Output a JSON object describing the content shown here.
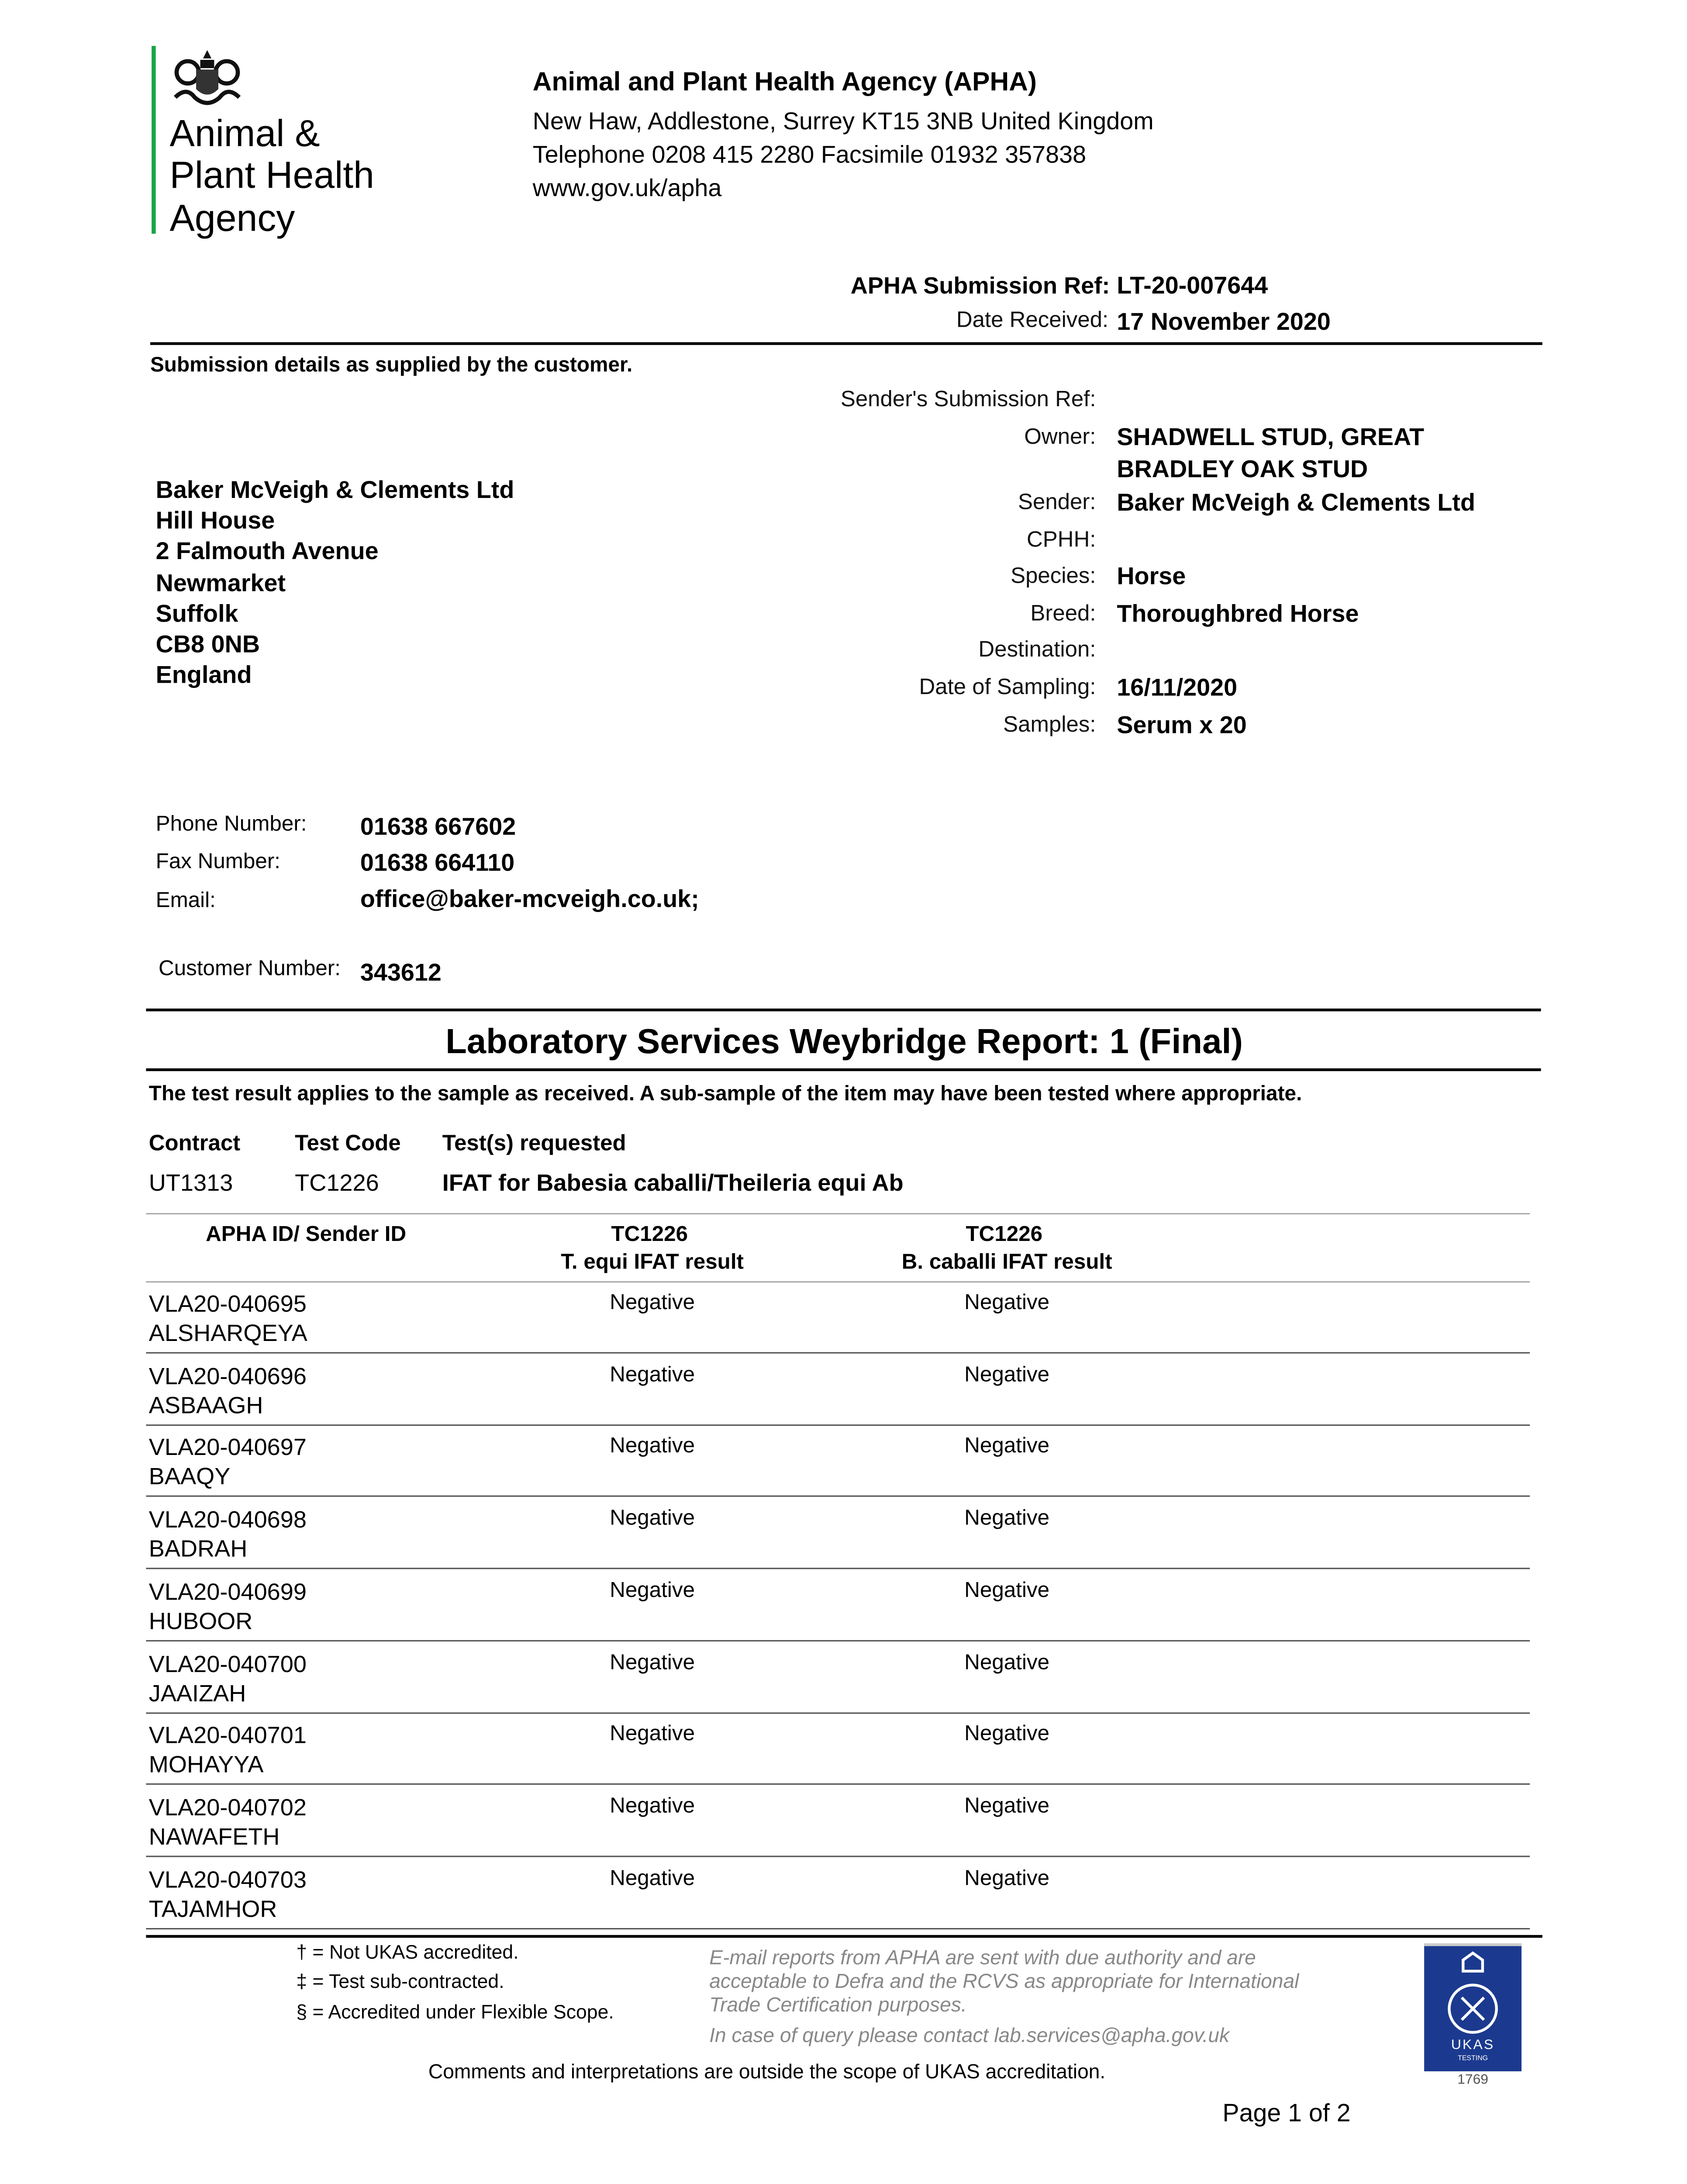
{
  "logo": {
    "lines": [
      "Animal &",
      "Plant Health",
      "Agency"
    ],
    "accent": "#1aa548"
  },
  "header": {
    "title": "Animal and Plant Health Agency (APHA)",
    "address": "New Haw, Addlestone, Surrey KT15 3NB United Kingdom",
    "phone": "Telephone 0208 415 2280 Facsimile 01932 357838",
    "web": "www.gov.uk/apha"
  },
  "submission": {
    "ref_label": "APHA Submission Ref:",
    "ref": "LT-20-007644",
    "date_label": "Date Received:",
    "date": "17 November 2020"
  },
  "details_heading": "Submission details as supplied by the customer.",
  "details": [
    {
      "label": "Sender's Submission Ref:",
      "value": ""
    },
    {
      "label": "Owner:",
      "value": "SHADWELL STUD, GREAT",
      "value2": "BRADLEY OAK STUD"
    },
    {
      "label": "Sender:",
      "value": "Baker McVeigh & Clements Ltd"
    },
    {
      "label": "CPHH:",
      "value": ""
    },
    {
      "label": "Species:",
      "value": "Horse"
    },
    {
      "label": "Breed:",
      "value": "Thoroughbred Horse"
    },
    {
      "label": "Destination:",
      "value": ""
    },
    {
      "label": "Date of Sampling:",
      "value": "16/11/2020"
    },
    {
      "label": "Samples:",
      "value": "Serum x 20"
    }
  ],
  "address": [
    "Baker McVeigh & Clements Ltd",
    "Hill House",
    "2 Falmouth Avenue",
    "Newmarket",
    "Suffolk",
    "CB8 0NB",
    "England"
  ],
  "contact": {
    "phone_label": "Phone Number:",
    "phone": "01638 667602",
    "fax_label": "Fax Number:",
    "fax": "01638 664110",
    "email_label": "Email:",
    "email": "office@baker-mcveigh.co.uk;",
    "customer_label": "Customer Number:",
    "customer": "343612"
  },
  "report": {
    "title": "Laboratory Services Weybridge Report: 1 (Final)",
    "disclaimer": "The test result applies to the sample as received. A sub-sample of the item may have been tested where appropriate."
  },
  "tests": {
    "headers": [
      "Contract",
      "Test Code",
      "Test(s) requested"
    ],
    "contract": "UT1313",
    "code": "TC1226",
    "requested": "IFAT for Babesia caballi/Theileria equi Ab"
  },
  "results": {
    "col_id": "APHA ID/ Sender ID",
    "col1_code": "TC1226",
    "col1_name": "T. equi IFAT result",
    "col2_code": "TC1226",
    "col2_name": "B. caballi IFAT result",
    "rows": [
      {
        "id": "VLA20-040695",
        "name": "ALSHARQEYA",
        "r1": "Negative",
        "r2": "Negative"
      },
      {
        "id": "VLA20-040696",
        "name": "ASBAAGH",
        "r1": "Negative",
        "r2": "Negative"
      },
      {
        "id": "VLA20-040697",
        "name": "BAAQY",
        "r1": "Negative",
        "r2": "Negative"
      },
      {
        "id": "VLA20-040698",
        "name": "BADRAH",
        "r1": "Negative",
        "r2": "Negative"
      },
      {
        "id": "VLA20-040699",
        "name": "HUBOOR",
        "r1": "Negative",
        "r2": "Negative"
      },
      {
        "id": "VLA20-040700",
        "name": "JAAIZAH",
        "r1": "Negative",
        "r2": "Negative"
      },
      {
        "id": "VLA20-040701",
        "name": "MOHAYYA",
        "r1": "Negative",
        "r2": "Negative"
      },
      {
        "id": "VLA20-040702",
        "name": "NAWAFETH",
        "r1": "Negative",
        "r2": "Negative"
      },
      {
        "id": "VLA20-040703",
        "name": "TAJAMHOR",
        "r1": "Negative",
        "r2": "Negative"
      }
    ]
  },
  "footer": {
    "notes": [
      "† = Not UKAS accredited.",
      "‡ = Test sub-contracted.",
      "§ = Accredited under Flexible Scope."
    ],
    "email_note": [
      "E-mail reports from APHA are sent with due authority and are",
      "acceptable to Defra and the RCVS as appropriate for International",
      "Trade Certification purposes."
    ],
    "query": "In case of query please contact lab.services@apha.gov.uk",
    "comments": "Comments and interpretations are outside the scope of UKAS accreditation.",
    "page": "Page 1 of  2",
    "ukas": {
      "text": "UKAS",
      "sub": "TESTING",
      "number": "1769",
      "color": "#1b3a8f"
    }
  }
}
